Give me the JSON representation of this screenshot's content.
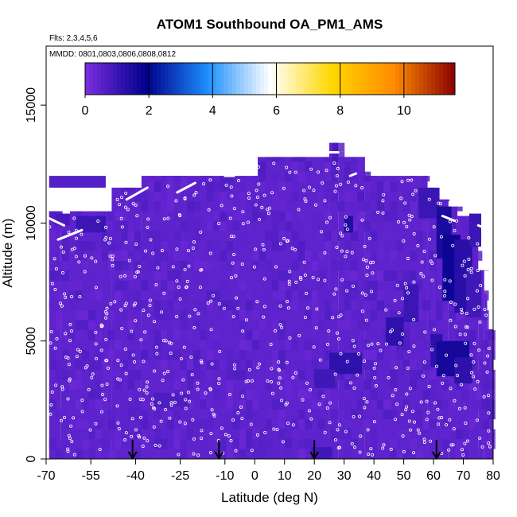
{
  "chart_data": {
    "type": "heatmap",
    "title": "ATOM1 Southbound OA_PM1_AMS",
    "subtitle_flights": "Flts: 2,3,4,5,6",
    "subtitle_dates": "MMDD: 0801,0803,0806,0808,0812",
    "xlabel": "Latitude (deg N)",
    "ylabel": "Altitude (m)",
    "xlim": [
      -70,
      80
    ],
    "ylim": [
      0,
      17500
    ],
    "x_ticks": [
      -70,
      -55,
      -40,
      -25,
      -10,
      0,
      10,
      20,
      30,
      40,
      50,
      60,
      70,
      80
    ],
    "x_tick_labels": [
      "-70",
      "-55",
      "-40",
      "-25",
      "-10",
      "0",
      "10",
      "20",
      "30",
      "40",
      "50",
      "60",
      "70",
      "80"
    ],
    "y_ticks": [
      0,
      5000,
      10000,
      15000
    ],
    "y_tick_labels": [
      "0",
      "5000",
      "10000",
      "15000"
    ],
    "colorbar": {
      "range": [
        0,
        11.6
      ],
      "ticks": [
        0,
        2,
        4,
        6,
        8,
        10
      ],
      "tick_labels": [
        "0",
        "2",
        "4",
        "6",
        "8",
        "10"
      ],
      "colors": [
        "#7a2de0",
        "#00008b",
        "#1e90ff",
        "#ffffff",
        "#ffd700",
        "#ff8c00",
        "#8b0000"
      ]
    },
    "base_value": 0.45,
    "profile": [
      {
        "x": [
          -69,
          -65
        ],
        "top": 10500
      },
      {
        "x": [
          -65,
          -62
        ],
        "top": 10000
      },
      {
        "x": [
          -62,
          -48
        ],
        "top": 10500
      },
      {
        "x": [
          -48,
          -38
        ],
        "top": 11500
      },
      {
        "x": [
          -38,
          1
        ],
        "top": 12000
      },
      {
        "x": [
          1,
          25
        ],
        "top": 12800
      },
      {
        "x": [
          25,
          28
        ],
        "top": 13400
      },
      {
        "x": [
          28,
          37
        ],
        "top": 12800
      },
      {
        "x": [
          37,
          58
        ],
        "top": 12000
      },
      {
        "x": [
          58,
          60
        ],
        "top": 11500
      },
      {
        "x": [
          60,
          65
        ],
        "top": 11000
      },
      {
        "x": [
          65,
          68
        ],
        "top": 10700
      },
      {
        "x": [
          68,
          72
        ],
        "top": 10300
      },
      {
        "x": [
          72,
          75
        ],
        "top": 9700
      },
      {
        "x": [
          75,
          77
        ],
        "top": 8000
      },
      {
        "x": [
          77,
          78
        ],
        "top": 7000
      },
      {
        "x": [
          78,
          80
        ],
        "top": 5500
      }
    ],
    "patches": [
      {
        "x": [
          -60,
          -50
        ],
        "y": [
          9600,
          10300
        ],
        "value": 1.0
      },
      {
        "x": [
          -67,
          -62
        ],
        "y": [
          9900,
          10400
        ],
        "value": 0.8
      },
      {
        "x": [
          30,
          33
        ],
        "y": [
          9600,
          10300
        ],
        "value": 1.4
      },
      {
        "x": [
          26,
          28
        ],
        "y": [
          12600,
          13400
        ],
        "value": 0.8
      },
      {
        "x": [
          55,
          62
        ],
        "y": [
          10200,
          11500
        ],
        "value": 1.0
      },
      {
        "x": [
          61,
          66
        ],
        "y": [
          8500,
          10700
        ],
        "value": 1.5
      },
      {
        "x": [
          63,
          69
        ],
        "y": [
          6700,
          9500
        ],
        "value": 1.7
      },
      {
        "x": [
          67,
          73
        ],
        "y": [
          6200,
          9300
        ],
        "value": 1.3
      },
      {
        "x": [
          72,
          76
        ],
        "y": [
          9000,
          10400
        ],
        "value": 1.0
      },
      {
        "x": [
          71,
          76
        ],
        "y": [
          6000,
          8000
        ],
        "value": 0.9
      },
      {
        "x": [
          50,
          55
        ],
        "y": [
          5800,
          7400
        ],
        "value": 1.0
      },
      {
        "x": [
          44,
          50
        ],
        "y": [
          4800,
          6000
        ],
        "value": 1.2
      },
      {
        "x": [
          59,
          63
        ],
        "y": [
          3900,
          5300
        ],
        "value": 1.2
      },
      {
        "x": [
          61,
          72
        ],
        "y": [
          3500,
          5000
        ],
        "value": 1.6
      },
      {
        "x": [
          67,
          73
        ],
        "y": [
          3200,
          4300
        ],
        "value": 1.2
      },
      {
        "x": [
          25,
          36
        ],
        "y": [
          3600,
          4500
        ],
        "value": 1.2
      },
      {
        "x": [
          20,
          27
        ],
        "y": [
          3000,
          3800
        ],
        "value": 0.9
      },
      {
        "x": [
          -34,
          -22
        ],
        "y": [
          2200,
          2800
        ],
        "value": 0.7
      },
      {
        "x": [
          19,
          26
        ],
        "y": [
          0,
          500
        ],
        "value": 0.9
      },
      {
        "x": [
          -69,
          -50
        ],
        "y": [
          11500,
          12000
        ],
        "value": 0.6
      }
    ],
    "flight_tracks": [
      {
        "x": [
          -69,
          -64
        ],
        "y": [
          10200,
          9900
        ]
      },
      {
        "x": [
          -66,
          -58
        ],
        "y": [
          9300,
          9700
        ]
      },
      {
        "x": [
          -43,
          -36
        ],
        "y": [
          11000,
          11500
        ]
      },
      {
        "x": [
          -26,
          -20
        ],
        "y": [
          11300,
          11700
        ]
      },
      {
        "x": [
          -10,
          -7
        ],
        "y": [
          12000,
          12000
        ]
      },
      {
        "x": [
          25,
          28
        ],
        "y": [
          13000,
          13000
        ]
      },
      {
        "x": [
          32,
          34
        ],
        "y": [
          12000,
          12100
        ]
      },
      {
        "x": [
          75,
          79
        ],
        "y": [
          9900,
          9700
        ]
      },
      {
        "x": [
          63,
          67
        ],
        "y": [
          10300,
          10100
        ]
      }
    ],
    "ascent_markers_lat": [
      -41,
      -12,
      20,
      61
    ]
  }
}
